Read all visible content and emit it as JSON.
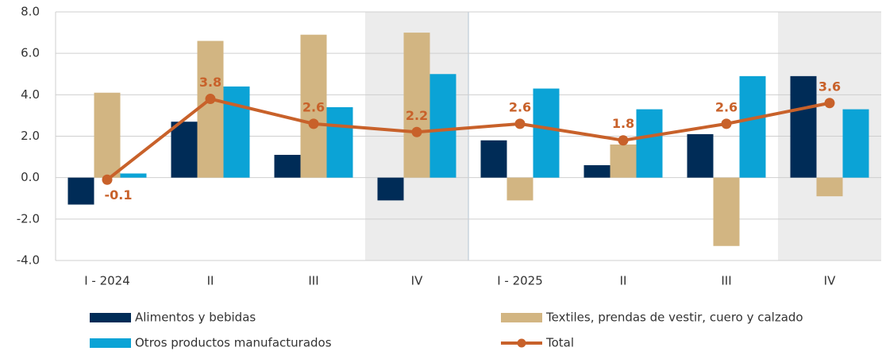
{
  "chart_data": {
    "type": "bar",
    "categories": [
      "I - 2024",
      "II",
      "III",
      "IV",
      "I - 2025",
      "II",
      "III",
      "IV"
    ],
    "series": [
      {
        "name": "Alimentos y bebidas",
        "color": "#002c57",
        "values": [
          -1.3,
          2.7,
          1.1,
          -1.1,
          1.8,
          0.6,
          2.1,
          4.9
        ]
      },
      {
        "name": "Textiles, prendas de vestir, cuero y calzado",
        "color": "#d2b582",
        "values": [
          4.1,
          6.6,
          6.9,
          7.0,
          -1.1,
          1.6,
          -3.3,
          -0.9
        ]
      },
      {
        "name": "Otros productos manufacturados",
        "color": "#0ba3d6",
        "values": [
          0.2,
          4.4,
          3.4,
          5.0,
          4.3,
          3.3,
          4.9,
          3.3
        ]
      },
      {
        "name": "Total",
        "type": "line",
        "color": "#c8612a",
        "values": [
          -0.1,
          3.8,
          2.6,
          2.2,
          2.6,
          1.8,
          2.6,
          3.6
        ]
      }
    ],
    "ylim": [
      -4,
      8
    ],
    "yticks": [
      {
        "value": -4,
        "label": "-4.0"
      },
      {
        "value": -2,
        "label": "-2.0"
      },
      {
        "value": 0,
        "label": "0.0"
      },
      {
        "value": 2,
        "label": "2.0"
      },
      {
        "value": 4,
        "label": "4.0"
      },
      {
        "value": 6,
        "label": "6.0"
      },
      {
        "value": 8,
        "label": "8.0"
      }
    ],
    "grid": true
  }
}
